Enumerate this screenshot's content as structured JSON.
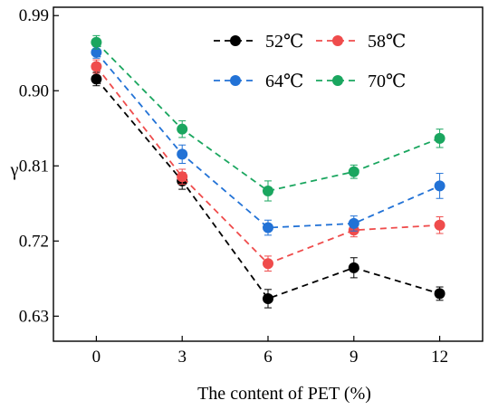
{
  "chart_data": {
    "type": "line",
    "title": "",
    "xlabel": "The content of PET (%)",
    "ylabel": "γ",
    "x": [
      0,
      3,
      6,
      9,
      12
    ],
    "x_tick_labels": [
      "0",
      "3",
      "6",
      "9",
      "12"
    ],
    "xlim": [
      -1.5,
      13.5
    ],
    "ylim": [
      0.6,
      1.0
    ],
    "y_ticks": [
      0.63,
      0.72,
      0.81,
      0.9,
      0.99
    ],
    "y_tick_labels": [
      "0.63",
      "0.72",
      "0.81",
      "0.90",
      "0.99"
    ],
    "grid": false,
    "legend": "top-right",
    "line_style": "dashed",
    "error_bars": true,
    "series": [
      {
        "name": "52℃",
        "color": "#000000",
        "values": [
          0.914,
          0.792,
          0.651,
          0.688,
          0.657
        ],
        "errors": [
          0.008,
          0.01,
          0.011,
          0.012,
          0.008
        ]
      },
      {
        "name": "58℃",
        "color": "#ef4c4c",
        "values": [
          0.929,
          0.797,
          0.693,
          0.733,
          0.739
        ],
        "errors": [
          0.008,
          0.009,
          0.009,
          0.008,
          0.01
        ]
      },
      {
        "name": "64℃",
        "color": "#2272d6",
        "values": [
          0.946,
          0.824,
          0.736,
          0.741,
          0.786
        ],
        "errors": [
          0.007,
          0.011,
          0.009,
          0.009,
          0.015
        ]
      },
      {
        "name": "70℃",
        "color": "#1aa65f",
        "values": [
          0.958,
          0.854,
          0.78,
          0.803,
          0.843
        ],
        "errors": [
          0.008,
          0.01,
          0.012,
          0.008,
          0.011
        ]
      }
    ]
  }
}
